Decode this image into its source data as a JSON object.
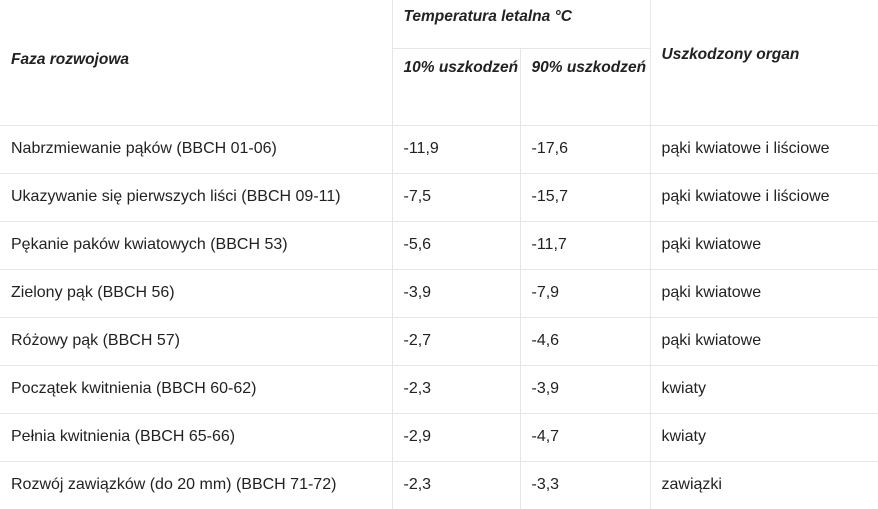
{
  "table": {
    "headers": {
      "phase": "Faza rozwojowa",
      "lethal_temp": "Temperatura letalna °C",
      "damage_10": "10% uszkodzeń",
      "damage_90": "90% uszkodzeń",
      "organ": "Uszkodzony organ"
    },
    "rows": [
      {
        "phase": "Nabrzmiewanie pąków (BBCH 01-06)",
        "t10": "-11,9",
        "t90": "-17,6",
        "organ": "pąki kwiatowe i liściowe"
      },
      {
        "phase": "Ukazywanie się pierwszych liści (BBCH 09-11)",
        "t10": "-7,5",
        "t90": "-15,7",
        "organ": "pąki kwiatowe i liściowe"
      },
      {
        "phase": "Pękanie paków kwiatowych (BBCH 53)",
        "t10": "-5,6",
        "t90": "-11,7",
        "organ": "pąki kwiatowe"
      },
      {
        "phase": "Zielony pąk (BBCH 56)",
        "t10": "-3,9",
        "t90": "-7,9",
        "organ": "pąki kwiatowe"
      },
      {
        "phase": "Różowy pąk (BBCH 57)",
        "t10": "-2,7",
        "t90": "-4,6",
        "organ": "pąki kwiatowe"
      },
      {
        "phase": "Początek kwitnienia (BBCH 60-62)",
        "t10": "-2,3",
        "t90": "-3,9",
        "organ": "kwiaty"
      },
      {
        "phase": "Pełnia kwitnienia (BBCH 65-66)",
        "t10": "-2,9",
        "t90": "-4,7",
        "organ": "kwiaty"
      },
      {
        "phase": "Rozwój zawiązków (do 20 mm) (BBCH 71-72)",
        "t10": "-2,3",
        "t90": "-3,3",
        "organ": "zawiązki"
      }
    ]
  }
}
